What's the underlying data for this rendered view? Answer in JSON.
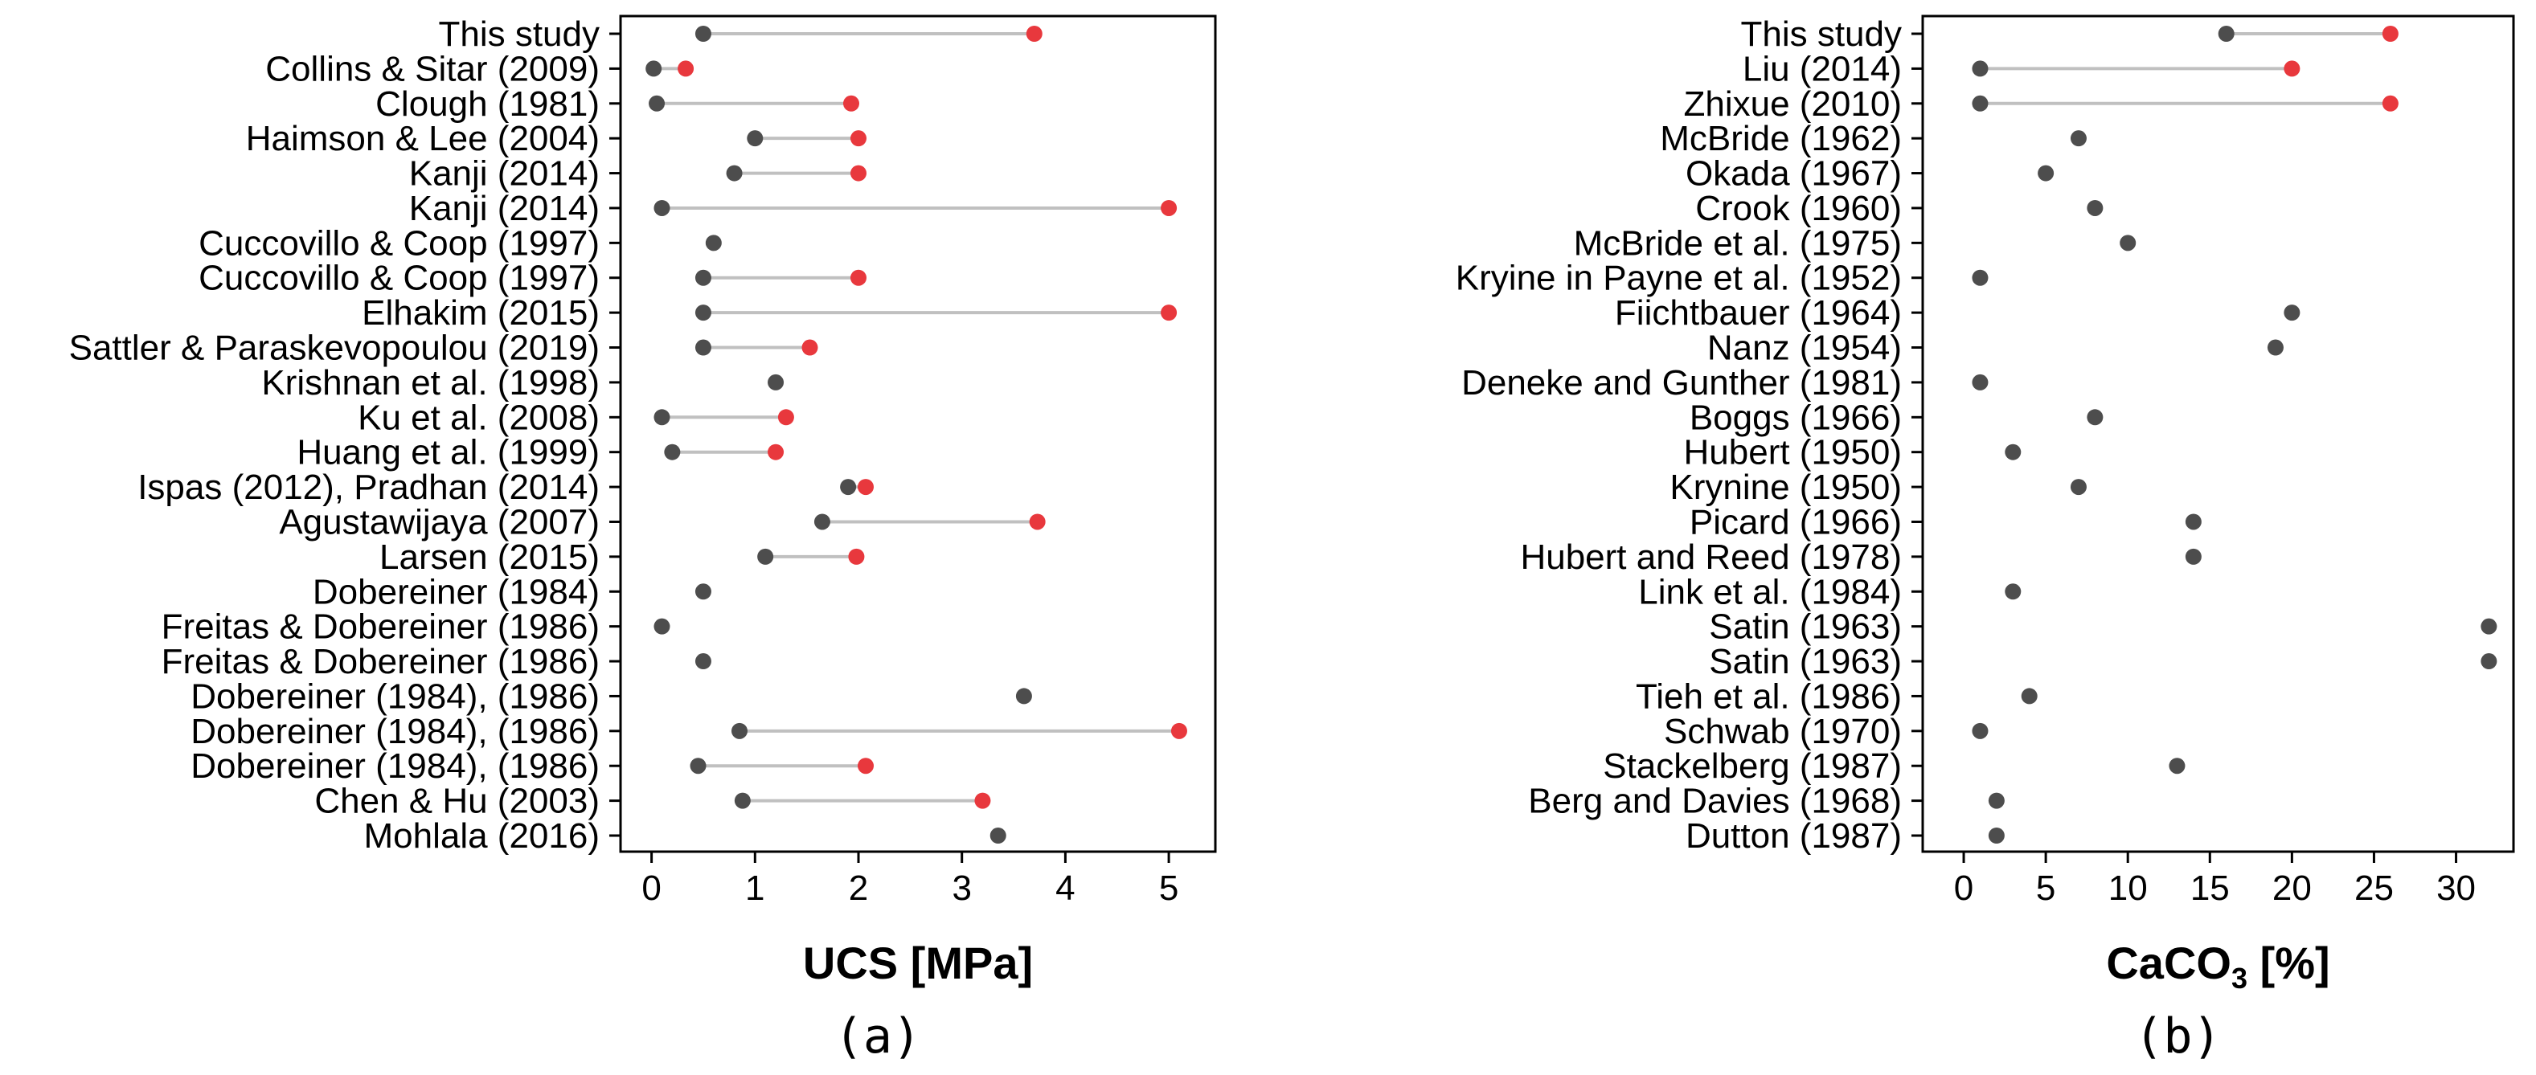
{
  "chart_data": [
    {
      "type": "dumbbell",
      "panel_label": "(a)",
      "xlabel": "UCS [MPa]",
      "xlim": [
        -0.3,
        5.45
      ],
      "xticks": [
        0,
        1,
        2,
        3,
        4,
        5
      ],
      "grid": false,
      "legend": "none",
      "colors": {
        "low": "#4d4d4d",
        "high": "#e8383d",
        "range_line": "#c0c0c0"
      },
      "categories": [
        "This study",
        "Collins & Sitar (2009)",
        "Clough (1981)",
        "Haimson & Lee (2004)",
        "Kanji (2014) ",
        "Kanji (2014) ",
        "Cuccovillo & Coop (1997)",
        "Cuccovillo & Coop (1997)",
        "Elhakim (2015)",
        "Sattler & Paraskevopoulou (2019)",
        "Krishnan et al. (1998)",
        "Ku et al. (2008)",
        "Huang et al. (1999)",
        "Ispas (2012), Pradhan (2014)",
        "Agustawijaya (2007)",
        "Larsen (2015)",
        "Dobereiner (1984)",
        "Freitas & Dobereiner (1986)",
        "Freitas & Dobereiner (1986)",
        "Dobereiner (1984), (1986)",
        "Dobereiner (1984), (1986)",
        "Dobereiner (1984), (1986)",
        "Chen & Hu (2003)",
        "Mohlala (2016)"
      ],
      "low": [
        0.5,
        0.02,
        0.05,
        1.0,
        0.8,
        0.1,
        0.6,
        0.5,
        0.5,
        0.5,
        1.2,
        0.1,
        0.2,
        1.9,
        1.65,
        1.1,
        0.5,
        0.1,
        0.5,
        3.6,
        0.85,
        0.45,
        0.88,
        3.35
      ],
      "high": [
        3.7,
        0.33,
        1.93,
        2.0,
        2.0,
        5.0,
        null,
        2.0,
        5.0,
        1.53,
        null,
        1.3,
        1.2,
        2.07,
        3.73,
        1.98,
        null,
        null,
        null,
        null,
        5.1,
        2.07,
        3.2,
        null
      ]
    },
    {
      "type": "dumbbell",
      "panel_label": "(b)",
      "xlabel": "CaCO",
      "xlabel_sub": "3",
      "xlabel_suffix": " [%]",
      "xlim": [
        -2.5,
        33.5
      ],
      "xticks": [
        0,
        5,
        10,
        15,
        20,
        25,
        30
      ],
      "grid": false,
      "legend": "none",
      "colors": {
        "low": "#4d4d4d",
        "high": "#e8383d",
        "range_line": "#c0c0c0"
      },
      "categories": [
        "This study",
        "Liu (2014)",
        "Zhixue (2010)",
        "McBride (1962)",
        "Okada (1967)",
        "Crook (1960)",
        "McBride et al. (1975)",
        "Kryine in Payne et al. (1952)",
        "Fiichtbauer (1964)",
        "Nanz (1954)",
        "Deneke and Gunther (1981)",
        "Boggs (1966)",
        "Hubert (1950)",
        "Krynine (1950)",
        "Picard (1966)",
        "Hubert and Reed (1978)",
        "Link et al. (1984)",
        "Satin (1963)",
        "Satin (1963)",
        "Tieh et al. (1986)",
        "Schwab (1970)",
        "Stackelberg (1987)",
        "Berg and Davies (1968)",
        "Dutton (1987)"
      ],
      "low": [
        16,
        1,
        1,
        7,
        5,
        8,
        10,
        1,
        20,
        19,
        1,
        8,
        3,
        7,
        14,
        14,
        3,
        32,
        32,
        4,
        1,
        13,
        2,
        2
      ],
      "high": [
        26,
        20,
        26,
        null,
        null,
        null,
        null,
        null,
        null,
        null,
        null,
        null,
        null,
        null,
        null,
        null,
        null,
        null,
        null,
        null,
        null,
        null,
        null,
        null
      ]
    }
  ]
}
